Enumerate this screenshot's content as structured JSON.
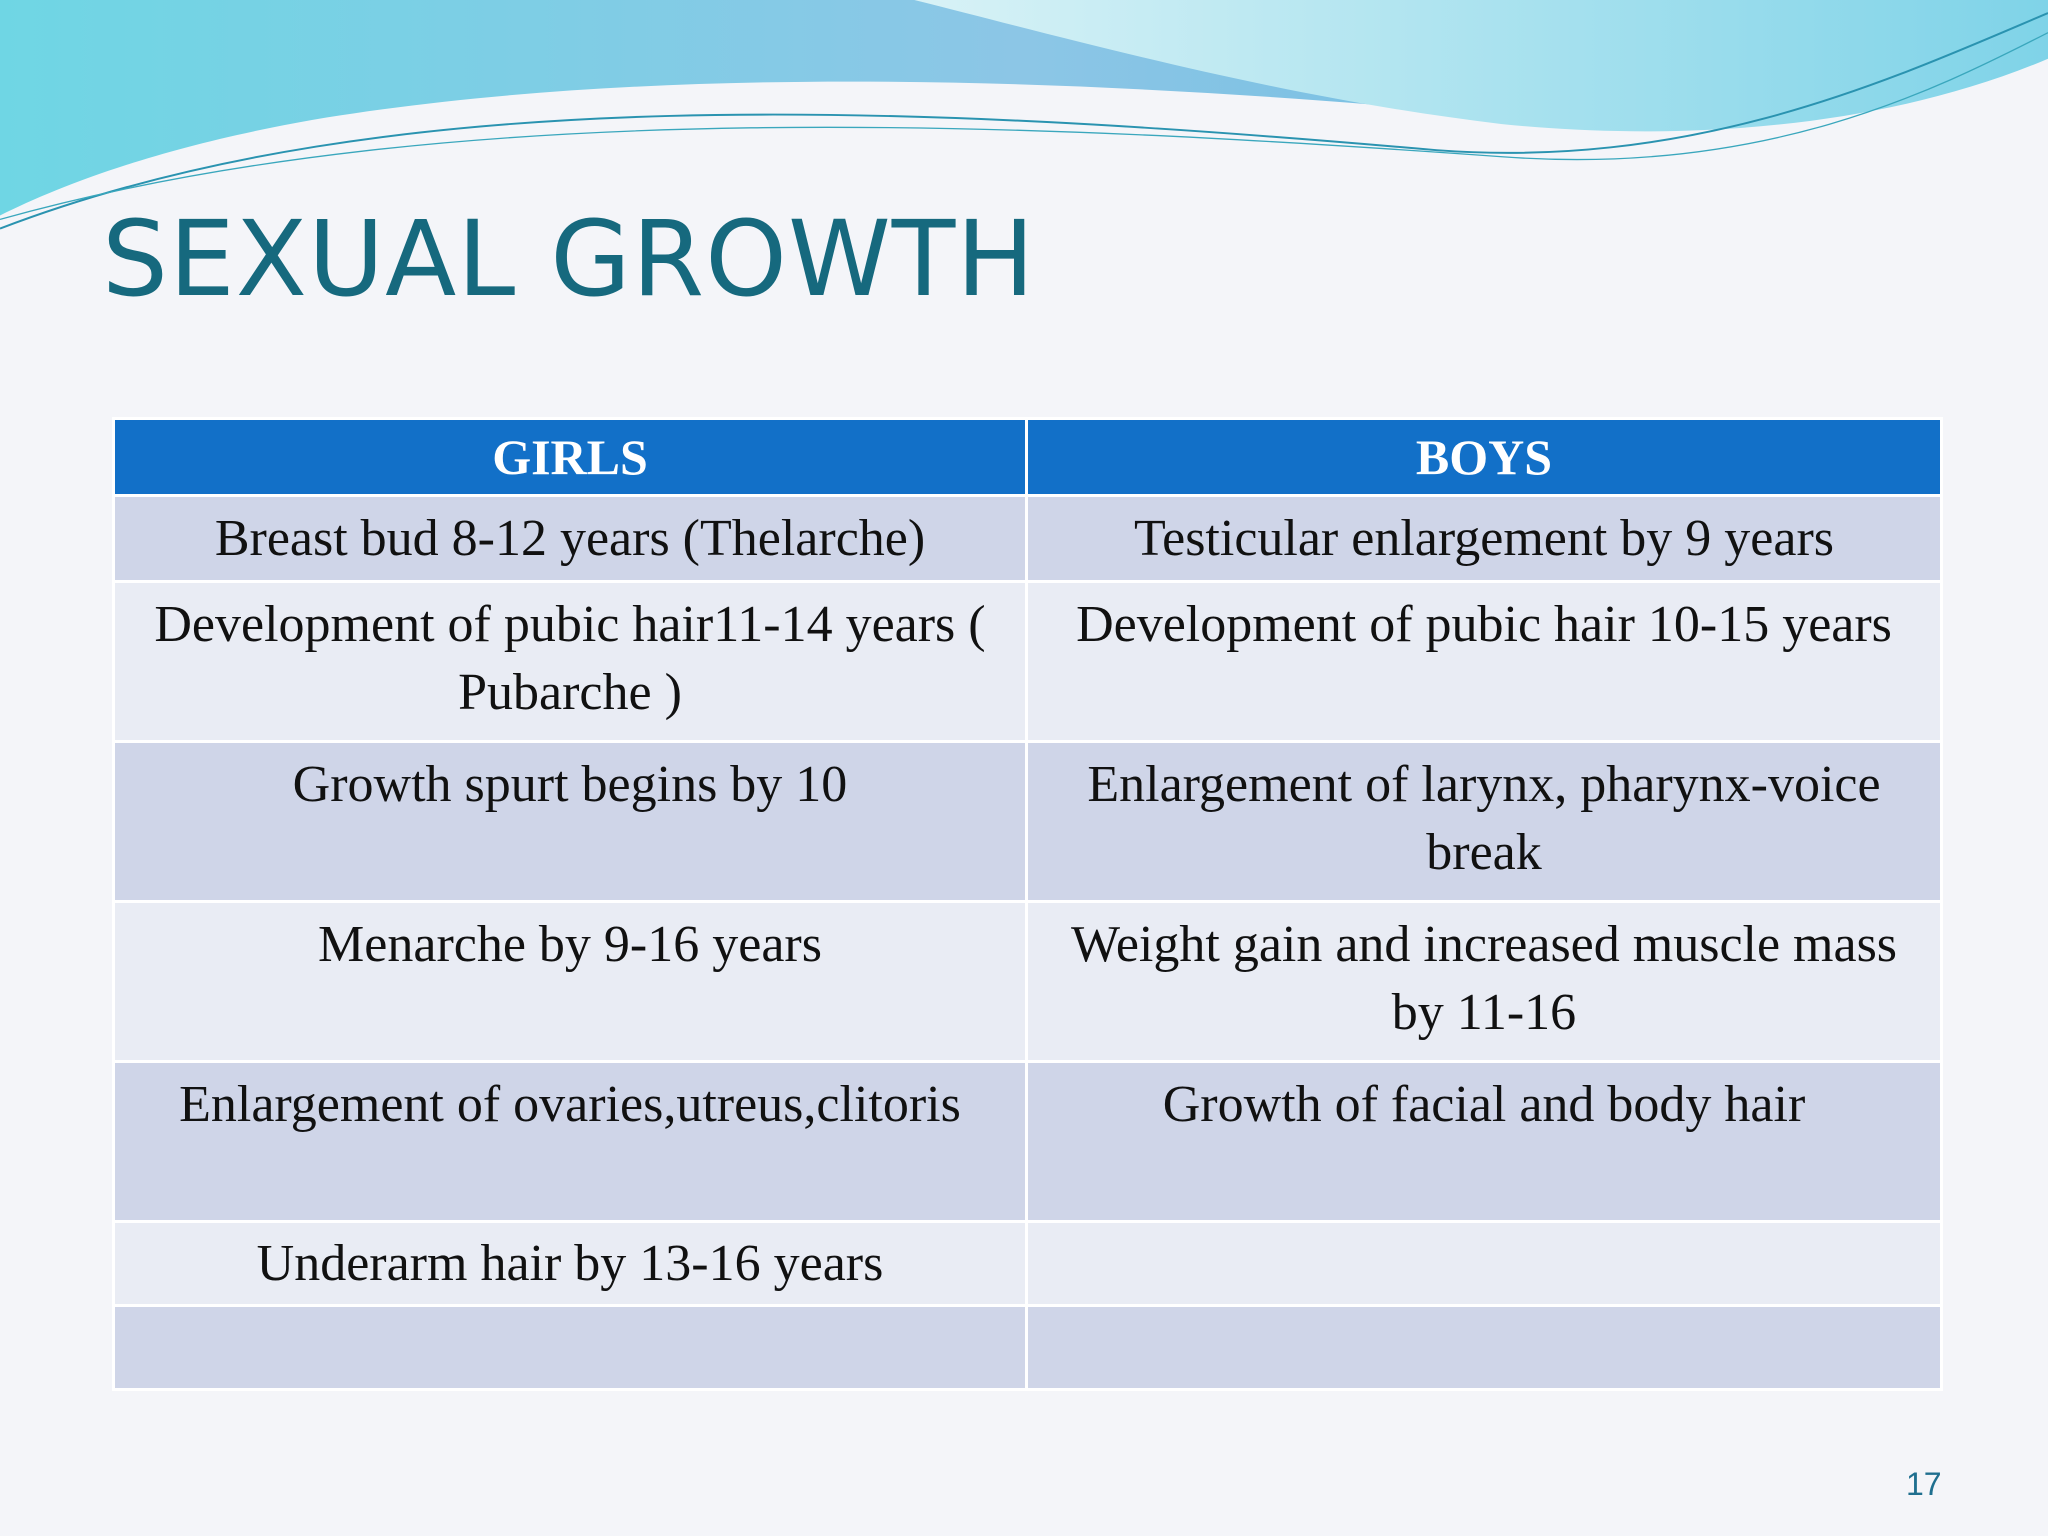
{
  "title": "SEXUAL GROWTH",
  "table": {
    "header": [
      "GIRLS",
      "BOYS"
    ],
    "rows": [
      [
        "Breast bud 8-12 years (Thelarche)",
        "Testicular enlargement by 9 years"
      ],
      [
        "Development of  pubic hair11-14 years    ( Pubarche )",
        "Development of pubic hair 10-15 years"
      ],
      [
        "Growth spurt begins by  10",
        "Enlargement of larynx, pharynx-voice break"
      ],
      [
        "Menarche by 9-16 years",
        "Weight gain and increased muscle mass by 11-16"
      ],
      [
        "Enlargement of ovaries,utreus,clitoris",
        "Growth of facial and body hair"
      ],
      [
        "Underarm hair by 13-16 years",
        null
      ],
      [
        null,
        null
      ]
    ]
  },
  "page_number": "17"
}
